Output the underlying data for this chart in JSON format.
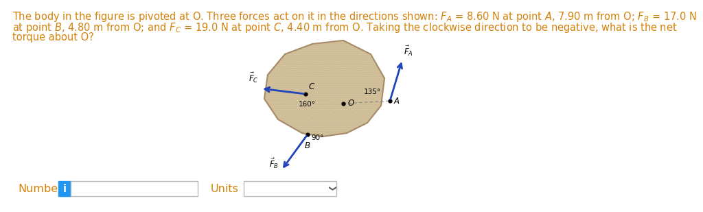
{
  "bg_color": "#ffffff",
  "text_color": "#d4820a",
  "black": "#000000",
  "arrow_color": "#2244bb",
  "body_fill": "#d4c4a0",
  "body_edge": "#a08060",
  "blue_btn": "#2196F3",
  "line1": "The body in the figure is pivoted at O. Three forces act on it in the directions shown: ",
  "line1b": "= 8.60 N at point ",
  "line1c": ", 7.90 m from O; ",
  "line1d": "= 17.0 N",
  "line2a": "at point ",
  "line2b": ", 4.80 m from O; and ",
  "line2c": "= 19.0 N at point ",
  "line2d": ", 4.40 m from O. Taking the clockwise direction to be negative, what is the net",
  "line3": "torque about O?",
  "num_label": "Number",
  "units_label": "Units",
  "fontsize": 10.5,
  "O": [
    503,
    163
  ],
  "A": [
    575,
    148
  ],
  "B": [
    435,
    200
  ],
  "C": [
    440,
    138
  ],
  "FA_vec": [
    25,
    -65
  ],
  "FC_vec": [
    -68,
    0
  ],
  "FB_vec": [
    -40,
    55
  ],
  "angle_135": "135°",
  "angle_160": "160°",
  "angle_90": "90°"
}
